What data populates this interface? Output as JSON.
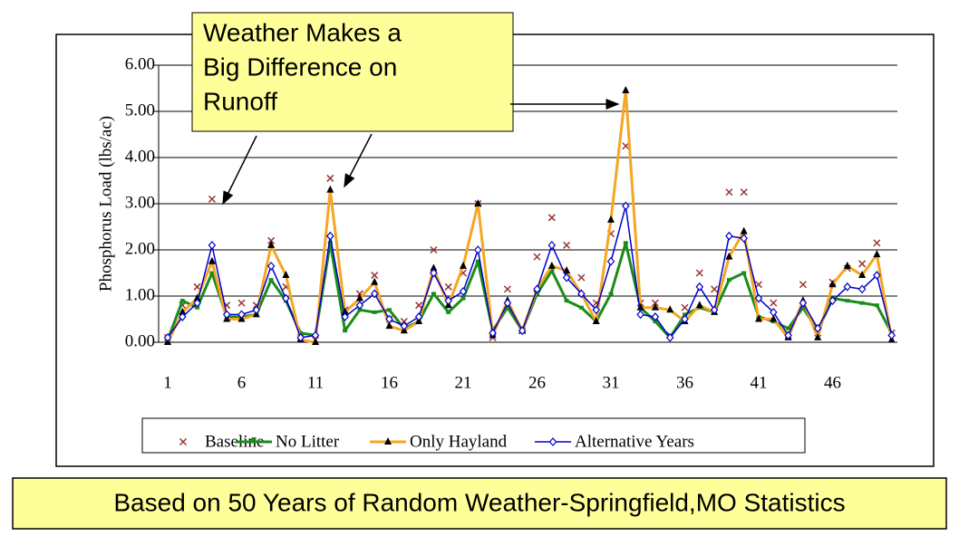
{
  "chart_data": {
    "type": "line",
    "annotation": [
      "Weather Makes a",
      "Big Difference on",
      "Runoff"
    ],
    "footnote": "Based on 50 Years of Random Weather-Springfield,MO Statistics",
    "y_label": "Phosphorus Load (lbs/ac)",
    "categories": [
      1,
      null,
      null,
      null,
      null,
      6,
      null,
      null,
      null,
      null,
      11,
      null,
      null,
      null,
      null,
      16,
      null,
      null,
      null,
      null,
      21,
      null,
      null,
      null,
      null,
      26,
      null,
      null,
      null,
      null,
      31,
      null,
      null,
      null,
      null,
      36,
      null,
      null,
      null,
      null,
      41,
      null,
      null,
      null,
      null,
      46,
      null,
      null,
      null,
      null
    ],
    "ylim": [
      0,
      6
    ],
    "yticks": [
      {
        "value": 0,
        "label": "0.00"
      },
      {
        "value": 1,
        "label": "1.00"
      },
      {
        "value": 2,
        "label": "2.00"
      },
      {
        "value": 3,
        "label": "3.00"
      },
      {
        "value": 4,
        "label": "4.00"
      },
      {
        "value": 5,
        "label": "5.00"
      },
      {
        "value": 6,
        "label": "6.00"
      }
    ],
    "grid": true,
    "legend": "bottom",
    "series": [
      {
        "name": "Baseline",
        "color": "#993333",
        "marker": "x",
        "line": false,
        "values": [
          0.1,
          0.8,
          1.2,
          3.1,
          0.8,
          0.85,
          0.8,
          2.2,
          1.2,
          0.1,
          0.05,
          3.55,
          0.7,
          1.05,
          1.45,
          0.5,
          0.45,
          0.8,
          2.0,
          1.2,
          1.5,
          3.0,
          0.1,
          1.15,
          0.25,
          1.85,
          2.7,
          2.1,
          1.4,
          0.85,
          2.35,
          4.25,
          0.85,
          0.85,
          0.15,
          0.75,
          1.5,
          1.15,
          3.25,
          3.25,
          1.25,
          0.85,
          0.15,
          1.25,
          0.2,
          1.3,
          1.6,
          1.7,
          2.15,
          0.2
        ]
      },
      {
        "name": "No Litter",
        "color": "#1a8c1a",
        "marker": "square",
        "line": true,
        "values": [
          0.05,
          0.9,
          0.75,
          1.5,
          0.55,
          0.55,
          0.6,
          1.35,
          0.9,
          0.2,
          0.15,
          2.15,
          0.25,
          0.7,
          0.65,
          0.7,
          0.3,
          0.45,
          1.05,
          0.65,
          0.95,
          1.75,
          0.25,
          0.75,
          0.25,
          1.05,
          1.55,
          0.9,
          0.75,
          0.45,
          1.05,
          2.15,
          0.75,
          0.45,
          0.1,
          0.6,
          0.75,
          0.65,
          1.35,
          1.5,
          0.55,
          0.45,
          0.3,
          0.75,
          0.25,
          0.95,
          0.9,
          0.85,
          0.8,
          0.2
        ]
      },
      {
        "name": "Only Hayland",
        "color": "#f5a623",
        "marker": "triangle",
        "line": true,
        "values": [
          0.0,
          0.65,
          0.95,
          1.75,
          0.5,
          0.5,
          0.6,
          2.1,
          1.45,
          0.05,
          0.0,
          3.3,
          0.65,
          0.95,
          1.3,
          0.35,
          0.25,
          0.45,
          1.6,
          0.8,
          1.65,
          3.0,
          0.15,
          0.9,
          0.25,
          1.15,
          1.65,
          1.55,
          1.05,
          0.45,
          2.65,
          5.45,
          0.75,
          0.75,
          0.7,
          0.45,
          0.8,
          0.65,
          1.85,
          2.4,
          0.5,
          0.5,
          0.1,
          0.9,
          0.1,
          1.25,
          1.65,
          1.45,
          1.9,
          0.05
        ]
      },
      {
        "name": "Alternative Years",
        "color": "#0000cc",
        "marker": "diamond",
        "line": true,
        "values": [
          0.1,
          0.55,
          0.85,
          2.1,
          0.6,
          0.6,
          0.7,
          1.65,
          0.95,
          0.1,
          0.15,
          2.3,
          0.55,
          0.8,
          1.05,
          0.5,
          0.35,
          0.55,
          1.5,
          0.9,
          1.1,
          2.0,
          0.2,
          0.85,
          0.25,
          1.15,
          2.1,
          1.4,
          1.05,
          0.7,
          1.75,
          2.95,
          0.6,
          0.55,
          0.1,
          0.5,
          1.2,
          0.7,
          2.3,
          2.25,
          0.95,
          0.65,
          0.15,
          0.85,
          0.3,
          0.9,
          1.2,
          1.15,
          1.45,
          0.15
        ]
      }
    ]
  }
}
